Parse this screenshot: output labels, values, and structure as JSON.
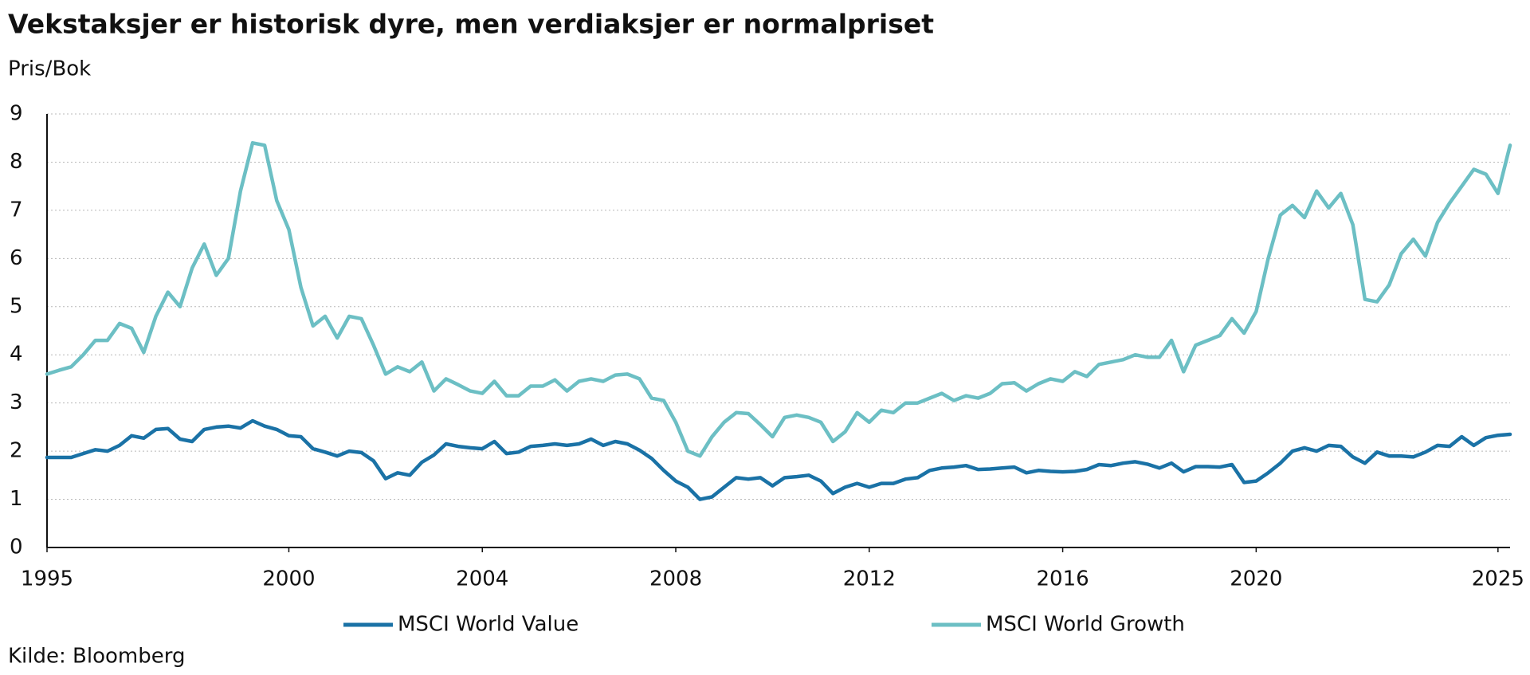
{
  "chart_data": {
    "type": "line",
    "title": "Vekstaksjer er historisk dyre, men verdiaksjer er normalpriset",
    "y_label": "Pris/Bok",
    "source": "Kilde: Bloomberg",
    "x": [
      1995,
      1995.25,
      1995.5,
      1995.75,
      1996,
      1996.25,
      1996.5,
      1996.75,
      1997,
      1997.25,
      1997.5,
      1997.75,
      1998,
      1998.25,
      1998.5,
      1998.75,
      1999,
      1999.25,
      1999.5,
      1999.75,
      2000,
      2000.25,
      2000.5,
      2000.75,
      2001,
      2001.25,
      2001.5,
      2001.75,
      2002,
      2002.25,
      2002.5,
      2002.75,
      2003,
      2003.25,
      2003.5,
      2003.75,
      2004,
      2004.25,
      2004.5,
      2004.75,
      2005,
      2005.25,
      2005.5,
      2005.75,
      2006,
      2006.25,
      2006.5,
      2006.75,
      2007,
      2007.25,
      2007.5,
      2007.75,
      2008,
      2008.25,
      2008.5,
      2008.75,
      2009,
      2009.25,
      2009.5,
      2009.75,
      2010,
      2010.25,
      2010.5,
      2010.75,
      2011,
      2011.25,
      2011.5,
      2011.75,
      2012,
      2012.25,
      2012.5,
      2012.75,
      2013,
      2013.25,
      2013.5,
      2013.75,
      2014,
      2014.25,
      2014.5,
      2014.75,
      2015,
      2015.25,
      2015.5,
      2015.75,
      2016,
      2016.25,
      2016.5,
      2016.75,
      2017,
      2017.25,
      2017.5,
      2017.75,
      2018,
      2018.25,
      2018.5,
      2018.75,
      2019,
      2019.25,
      2019.5,
      2019.75,
      2020,
      2020.25,
      2020.5,
      2020.75,
      2021,
      2021.25,
      2021.5,
      2021.75,
      2022,
      2022.25,
      2022.5,
      2022.75,
      2023,
      2023.25,
      2023.5,
      2023.75,
      2024,
      2024.25,
      2024.5,
      2024.75,
      2025,
      2025.25
    ],
    "series": [
      {
        "name": "MSCI World Value",
        "color": "#1a72a6",
        "values": [
          1.87,
          1.87,
          1.87,
          1.95,
          2.03,
          2.0,
          2.12,
          2.32,
          2.27,
          2.45,
          2.47,
          2.25,
          2.2,
          2.45,
          2.5,
          2.52,
          2.48,
          2.63,
          2.52,
          2.45,
          2.32,
          2.3,
          2.05,
          1.98,
          1.9,
          2.0,
          1.97,
          1.8,
          1.43,
          1.55,
          1.5,
          1.77,
          1.92,
          2.15,
          2.1,
          2.07,
          2.05,
          2.2,
          1.95,
          1.98,
          2.1,
          2.12,
          2.15,
          2.12,
          2.15,
          2.25,
          2.12,
          2.2,
          2.15,
          2.02,
          1.85,
          1.6,
          1.38,
          1.25,
          1.0,
          1.05,
          1.25,
          1.45,
          1.42,
          1.45,
          1.28,
          1.45,
          1.47,
          1.5,
          1.38,
          1.12,
          1.25,
          1.33,
          1.25,
          1.33,
          1.33,
          1.42,
          1.45,
          1.6,
          1.65,
          1.67,
          1.7,
          1.62,
          1.63,
          1.65,
          1.67,
          1.55,
          1.6,
          1.58,
          1.57,
          1.58,
          1.62,
          1.72,
          1.7,
          1.75,
          1.78,
          1.73,
          1.65,
          1.75,
          1.57,
          1.68,
          1.68,
          1.67,
          1.72,
          1.35,
          1.38,
          1.55,
          1.75,
          2.0,
          2.07,
          2.0,
          2.12,
          2.1,
          1.88,
          1.75,
          1.98,
          1.9,
          1.9,
          1.88,
          1.98,
          2.12,
          2.1,
          2.3,
          2.12,
          2.28,
          2.33,
          2.35
        ]
      },
      {
        "name": "MSCI World Growth",
        "color": "#6cbfc4",
        "values": [
          3.6,
          3.68,
          3.75,
          4.0,
          4.3,
          4.3,
          4.65,
          4.55,
          4.05,
          4.8,
          5.3,
          5.0,
          5.8,
          6.3,
          5.65,
          6.0,
          7.4,
          8.4,
          8.35,
          7.2,
          6.6,
          5.4,
          4.6,
          4.8,
          4.35,
          4.8,
          4.75,
          4.2,
          3.6,
          3.75,
          3.65,
          3.85,
          3.25,
          3.5,
          3.38,
          3.25,
          3.2,
          3.45,
          3.15,
          3.15,
          3.35,
          3.35,
          3.48,
          3.25,
          3.45,
          3.5,
          3.45,
          3.58,
          3.6,
          3.5,
          3.1,
          3.05,
          2.6,
          2.0,
          1.9,
          2.3,
          2.6,
          2.8,
          2.78,
          2.55,
          2.3,
          2.7,
          2.75,
          2.7,
          2.6,
          2.2,
          2.4,
          2.8,
          2.6,
          2.85,
          2.8,
          3.0,
          3.0,
          3.1,
          3.2,
          3.05,
          3.15,
          3.1,
          3.2,
          3.4,
          3.42,
          3.25,
          3.4,
          3.5,
          3.45,
          3.65,
          3.55,
          3.8,
          3.85,
          3.9,
          4.0,
          3.95,
          3.95,
          4.3,
          3.65,
          4.2,
          4.3,
          4.4,
          4.75,
          4.45,
          4.9,
          6.0,
          6.9,
          7.1,
          6.85,
          7.4,
          7.05,
          7.35,
          6.7,
          5.15,
          5.1,
          5.45,
          6.1,
          6.4,
          6.05,
          6.75,
          7.15,
          7.5,
          7.85,
          7.75,
          7.35,
          8.35
        ]
      }
    ],
    "xlim": [
      1995,
      2025.25
    ],
    "xticks": [
      1995,
      2000,
      2004,
      2008,
      2012,
      2016,
      2020,
      2025
    ],
    "ylim": [
      0,
      9
    ],
    "yticks": [
      0,
      1,
      2,
      3,
      4,
      5,
      6,
      7,
      8,
      9
    ],
    "grid": true
  }
}
